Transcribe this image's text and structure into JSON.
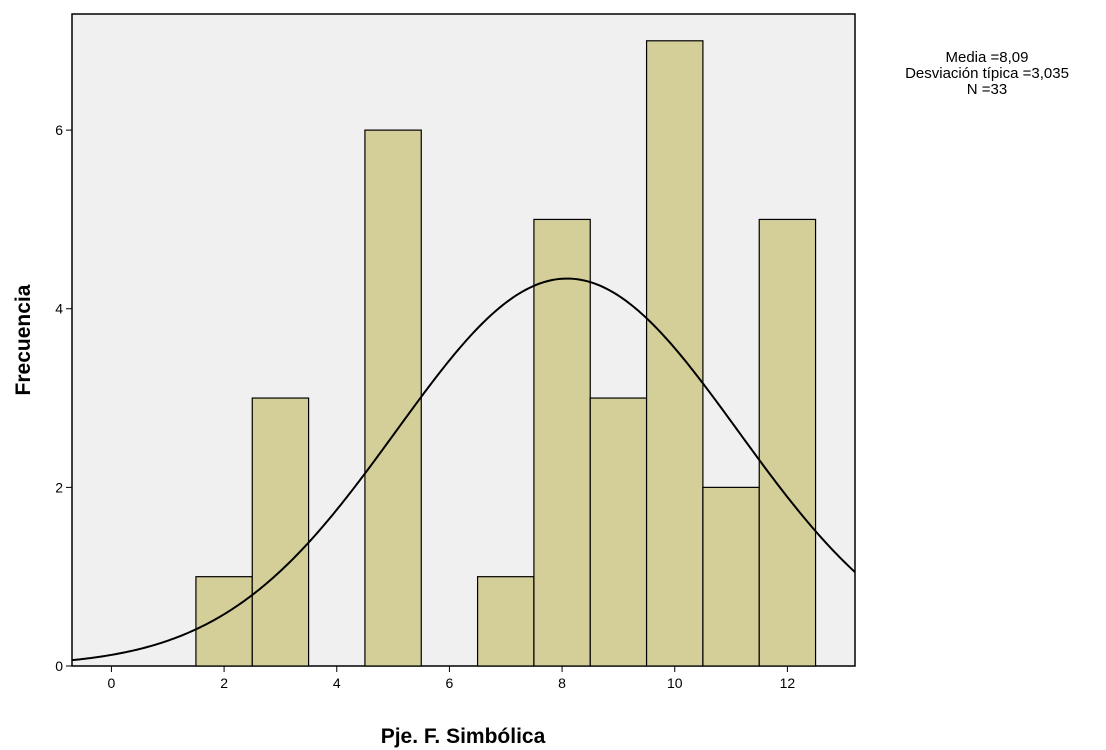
{
  "chart_data": {
    "type": "bar",
    "subtype": "histogram",
    "xlabel": "Pje. F. Simbólica",
    "ylabel": "Frecuencia",
    "xlim": [
      -0.7,
      13.2
    ],
    "ylim": [
      0,
      7.3
    ],
    "x_ticks": [
      0,
      2,
      4,
      6,
      8,
      10,
      12
    ],
    "y_ticks": [
      0,
      2,
      4,
      6
    ],
    "bins": [
      {
        "center": 2,
        "value": 1
      },
      {
        "center": 3,
        "value": 3
      },
      {
        "center": 5,
        "value": 6
      },
      {
        "center": 7,
        "value": 1
      },
      {
        "center": 8,
        "value": 5
      },
      {
        "center": 9,
        "value": 3
      },
      {
        "center": 10,
        "value": 7
      },
      {
        "center": 11,
        "value": 2
      },
      {
        "center": 12,
        "value": 5
      }
    ],
    "bin_width": 1,
    "normal_curve": {
      "mean": 8.09,
      "sd": 3.035,
      "n": 33
    },
    "grid": false,
    "colors": {
      "bar_fill": "#d4cf98",
      "bar_stroke": "#000000",
      "plot_bg": "#f0f0f0",
      "curve": "#000000"
    }
  },
  "stats": {
    "media": "Media =8,09",
    "desviacion": "Desviación típica =3,035",
    "n": "N =33"
  }
}
